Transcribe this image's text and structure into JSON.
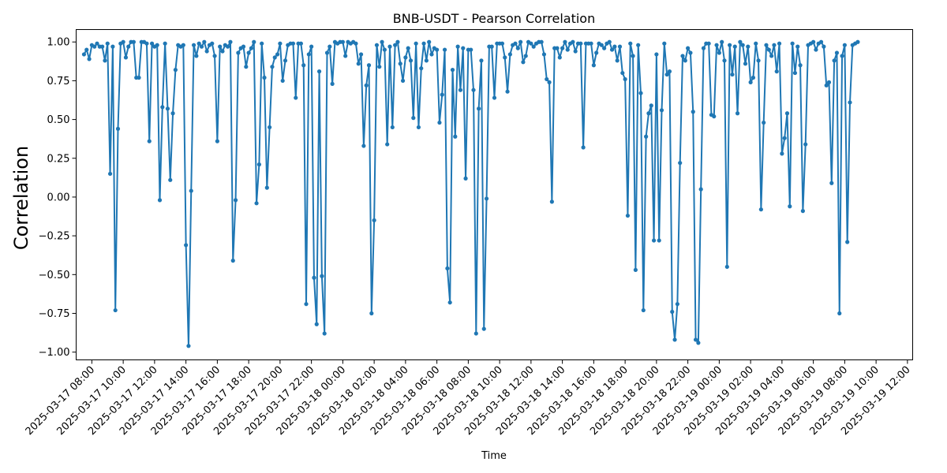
{
  "chart_data": {
    "type": "line",
    "title": "BNB-USDT - Pearson Correlation",
    "xlabel": "Time",
    "ylabel": "Correlation",
    "x_start": "2025-03-17 07:30",
    "x_interval_minutes": 10,
    "xlim": [
      "2025-03-17 07:00",
      "2025-03-19 12:20"
    ],
    "ylim": [
      -1.05,
      1.08
    ],
    "yticks": [
      -1.0,
      -0.75,
      -0.5,
      -0.25,
      0.0,
      0.25,
      0.5,
      0.75,
      1.0
    ],
    "ytick_labels": [
      "−1.00",
      "−0.75",
      "−0.50",
      "−0.25",
      "0.00",
      "0.25",
      "0.50",
      "0.75",
      "1.00"
    ],
    "xtick_labels": [
      "2025-03-17 08:00",
      "2025-03-17 10:00",
      "2025-03-17 12:00",
      "2025-03-17 14:00",
      "2025-03-17 16:00",
      "2025-03-17 18:00",
      "2025-03-17 20:00",
      "2025-03-17 22:00",
      "2025-03-18 00:00",
      "2025-03-18 02:00",
      "2025-03-18 04:00",
      "2025-03-18 06:00",
      "2025-03-18 08:00",
      "2025-03-18 10:00",
      "2025-03-18 12:00",
      "2025-03-18 14:00",
      "2025-03-18 16:00",
      "2025-03-18 18:00",
      "2025-03-18 20:00",
      "2025-03-18 22:00",
      "2025-03-19 00:00",
      "2025-03-19 02:00",
      "2025-03-19 04:00",
      "2025-03-19 06:00",
      "2025-03-19 08:00",
      "2025-03-19 10:00",
      "2025-03-19 12:00"
    ],
    "grid": false,
    "series": [
      {
        "color": "#1f77b4",
        "values": [
          0.92,
          0.95,
          0.89,
          0.98,
          0.97,
          0.99,
          0.97,
          0.97,
          0.88,
          0.99,
          0.15,
          0.97,
          -0.73,
          0.44,
          0.99,
          1.0,
          0.9,
          0.97,
          1.0,
          1.0,
          0.77,
          0.77,
          1.0,
          1.0,
          0.99,
          0.36,
          0.99,
          0.97,
          0.98,
          -0.02,
          0.58,
          0.99,
          0.57,
          0.11,
          0.54,
          0.82,
          0.98,
          0.97,
          0.98,
          -0.31,
          -0.96,
          0.04,
          0.98,
          0.91,
          0.99,
          0.97,
          1.0,
          0.94,
          0.98,
          0.99,
          0.91,
          0.36,
          0.97,
          0.94,
          0.98,
          0.97,
          1.0,
          -0.41,
          -0.02,
          0.93,
          0.96,
          0.97,
          0.84,
          0.93,
          0.96,
          1.0,
          -0.04,
          0.21,
          0.99,
          0.77,
          0.06,
          0.45,
          0.84,
          0.9,
          0.92,
          0.99,
          0.75,
          0.88,
          0.98,
          0.99,
          0.99,
          0.64,
          0.99,
          0.99,
          0.85,
          -0.69,
          0.92,
          0.97,
          -0.52,
          -0.82,
          0.81,
          -0.51,
          -0.88,
          0.93,
          0.97,
          0.73,
          1.0,
          0.99,
          1.0,
          1.0,
          0.91,
          1.0,
          0.99,
          1.0,
          0.99,
          0.86,
          0.92,
          0.33,
          0.72,
          0.85,
          -0.75,
          -0.15,
          0.98,
          0.84,
          1.0,
          0.95,
          0.34,
          0.97,
          0.45,
          0.98,
          1.0,
          0.86,
          0.75,
          0.9,
          0.96,
          0.88,
          0.51,
          0.99,
          0.45,
          0.83,
          0.99,
          0.88,
          1.0,
          0.92,
          0.96,
          0.95,
          0.48,
          0.66,
          0.95,
          -0.46,
          -0.68,
          0.82,
          0.39,
          0.97,
          0.69,
          0.96,
          0.12,
          0.95,
          0.95,
          0.69,
          -0.88,
          0.57,
          0.88,
          -0.85,
          -0.01,
          0.97,
          0.97,
          0.64,
          0.99,
          0.99,
          0.99,
          0.9,
          0.68,
          0.92,
          0.98,
          0.99,
          0.96,
          1.0,
          0.87,
          0.91,
          1.0,
          0.99,
          0.97,
          0.99,
          1.0,
          1.0,
          0.92,
          0.76,
          0.74,
          -0.03,
          0.96,
          0.96,
          0.9,
          0.96,
          1.0,
          0.95,
          0.99,
          1.0,
          0.94,
          0.99,
          0.99,
          0.32,
          0.99,
          0.99,
          0.99,
          0.85,
          0.93,
          0.99,
          0.98,
          0.96,
          0.99,
          1.0,
          0.95,
          0.97,
          0.88,
          0.97,
          0.8,
          0.76,
          -0.12,
          0.99,
          0.91,
          -0.47,
          0.98,
          0.67,
          -0.73,
          0.39,
          0.54,
          0.59,
          -0.28,
          0.92,
          -0.28,
          0.56,
          0.99,
          0.79,
          0.81,
          -0.74,
          -0.92,
          -0.69,
          0.22,
          0.91,
          0.88,
          0.96,
          0.93,
          0.55,
          -0.92,
          -0.94,
          0.05,
          0.96,
          0.99,
          0.99,
          0.53,
          0.52,
          0.98,
          0.93,
          1.0,
          0.88,
          -0.45,
          0.98,
          0.79,
          0.97,
          0.54,
          1.0,
          0.98,
          0.86,
          0.97,
          0.74,
          0.77,
          0.99,
          0.88,
          -0.08,
          0.48,
          0.98,
          0.95,
          0.91,
          0.98,
          0.81,
          0.99,
          0.28,
          0.38,
          0.54,
          -0.06,
          0.99,
          0.8,
          0.97,
          0.85,
          -0.09,
          0.34,
          0.98,
          0.99,
          1.0,
          0.95,
          0.99,
          1.0,
          0.97,
          0.72,
          0.74,
          0.09,
          0.88,
          0.93,
          -0.75,
          0.91,
          0.98,
          -0.29,
          0.61,
          0.98,
          0.99,
          1.0
        ]
      }
    ]
  }
}
